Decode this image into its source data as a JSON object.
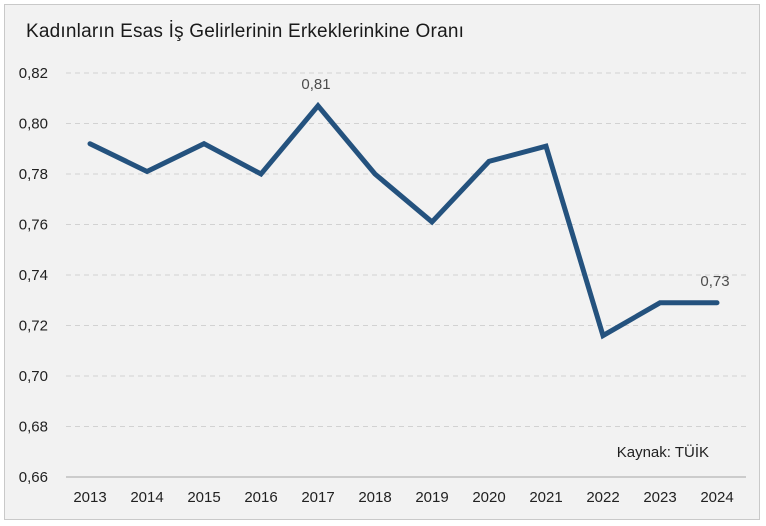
{
  "source_note": "Kaynak: TÜİK",
  "colors": {
    "line": "#24527E",
    "background": "#F2F2F2",
    "grid": "#D2D2D2",
    "axis": "#C0C0C0",
    "tick_text": "#212121",
    "data_label": "#4D4D4D",
    "frame_border": "#C9C9C9"
  },
  "chart_data": {
    "type": "line",
    "title": "Kadınların Esas İş Gelirlerinin Erkeklerinkine Oranı",
    "categories": [
      "2013",
      "2014",
      "2015",
      "2016",
      "2017",
      "2018",
      "2019",
      "2020",
      "2021",
      "2022",
      "2023",
      "2024"
    ],
    "values": [
      0.792,
      0.781,
      0.792,
      0.78,
      0.807,
      0.78,
      0.761,
      0.785,
      0.791,
      0.716,
      0.729,
      0.729
    ],
    "xlabel": "",
    "ylabel": "",
    "ylim": [
      0.66,
      0.82
    ],
    "ytick_step": 0.02,
    "ytick_labels": [
      "0,82",
      "0,80",
      "0,78",
      "0,76",
      "0,74",
      "0,72",
      "0,70",
      "0,68",
      "0,66"
    ],
    "grid": "horizontal-dashed",
    "legend": "none",
    "annotations": [
      {
        "category": "2017",
        "value": 0.807,
        "text": "0,81"
      },
      {
        "category": "2024",
        "value": 0.729,
        "text": "0,73"
      }
    ]
  }
}
